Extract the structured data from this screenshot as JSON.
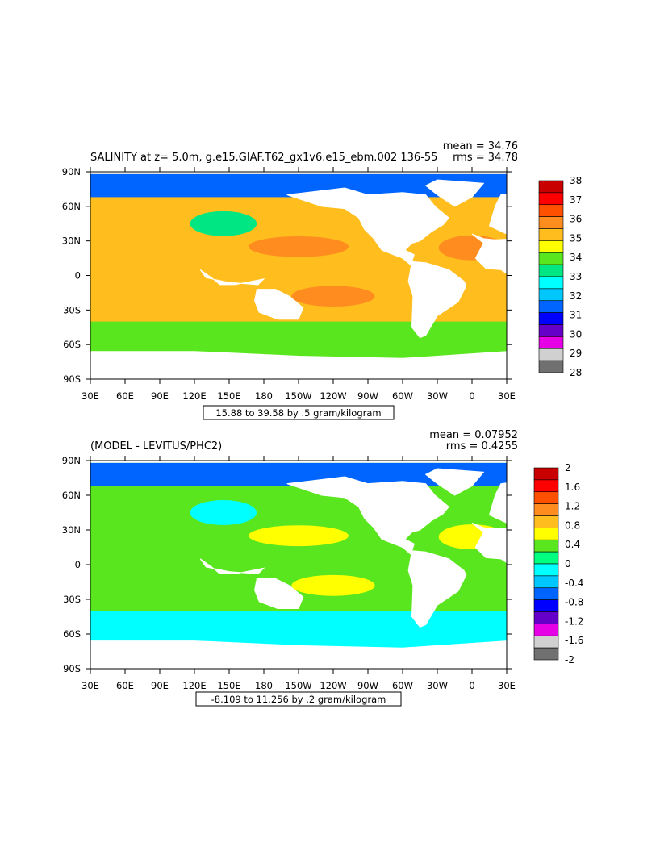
{
  "chart_data": [
    {
      "type": "heatmap",
      "title": "SALINITY at z=    5.0m, g.e15.GIAF.T62_gx1v6.e15_ebm.002 136-55",
      "stats": {
        "mean": "mean = 34.76",
        "rms": "rms = 34.78"
      },
      "caption": "15.88 to 39.58 by .5 gram/kilogram",
      "x_ticks": [
        "30E",
        "60E",
        "90E",
        "120E",
        "150E",
        "180",
        "150W",
        "120W",
        "90W",
        "60W",
        "30W",
        "0",
        "30E"
      ],
      "y_ticks": [
        "90N",
        "60N",
        "30N",
        "0",
        "30S",
        "60S",
        "90S"
      ],
      "colorbar": {
        "labels": [
          "38",
          "37",
          "36",
          "35",
          "34",
          "33",
          "32",
          "31",
          "30",
          "29",
          "28"
        ],
        "colors": [
          "#c80000",
          "#ff0000",
          "#ff5000",
          "#ff8c1e",
          "#ffbe1e",
          "#ffff00",
          "#5ae61e",
          "#00e682",
          "#00ffff",
          "#00c8ff",
          "#0064ff",
          "#0000ff",
          "#6400c8",
          "#e600e6",
          "#d0d0d0",
          "#707070"
        ]
      },
      "domain_colors": {
        "high": "#ff8c1e",
        "mid": "#ffbe1e",
        "low": "#00e682",
        "southern": "#5ae61e",
        "arctic": "#0064ff"
      }
    },
    {
      "type": "heatmap",
      "title": "(MODEL - LEVITUS/PHC2)",
      "stats": {
        "mean": "mean = 0.07952",
        "rms": "rms = 0.4255"
      },
      "caption": "-8.109 to 11.256 by .2 gram/kilogram",
      "x_ticks": [
        "30E",
        "60E",
        "90E",
        "120E",
        "150E",
        "180",
        "150W",
        "120W",
        "90W",
        "60W",
        "30W",
        "0",
        "30E"
      ],
      "y_ticks": [
        "90N",
        "60N",
        "30N",
        "0",
        "30S",
        "60S",
        "90S"
      ],
      "colorbar": {
        "labels": [
          "2",
          "1.6",
          "1.2",
          "0.8",
          "0.4",
          "0",
          "-0.4",
          "-0.8",
          "-1.2",
          "-1.6",
          "-2"
        ],
        "colors": [
          "#c80000",
          "#ff0000",
          "#ff5000",
          "#ff8c1e",
          "#ffbe1e",
          "#ffff00",
          "#5ae61e",
          "#00ff80",
          "#00ffff",
          "#00c8ff",
          "#0064ff",
          "#0000ff",
          "#6400c8",
          "#e600e6",
          "#d0d0d0",
          "#707070"
        ]
      },
      "domain_colors": {
        "high": "#ffff00",
        "mid": "#5ae61e",
        "low": "#00ffff",
        "southern": "#00ffff",
        "arctic": "#0064ff"
      }
    }
  ]
}
